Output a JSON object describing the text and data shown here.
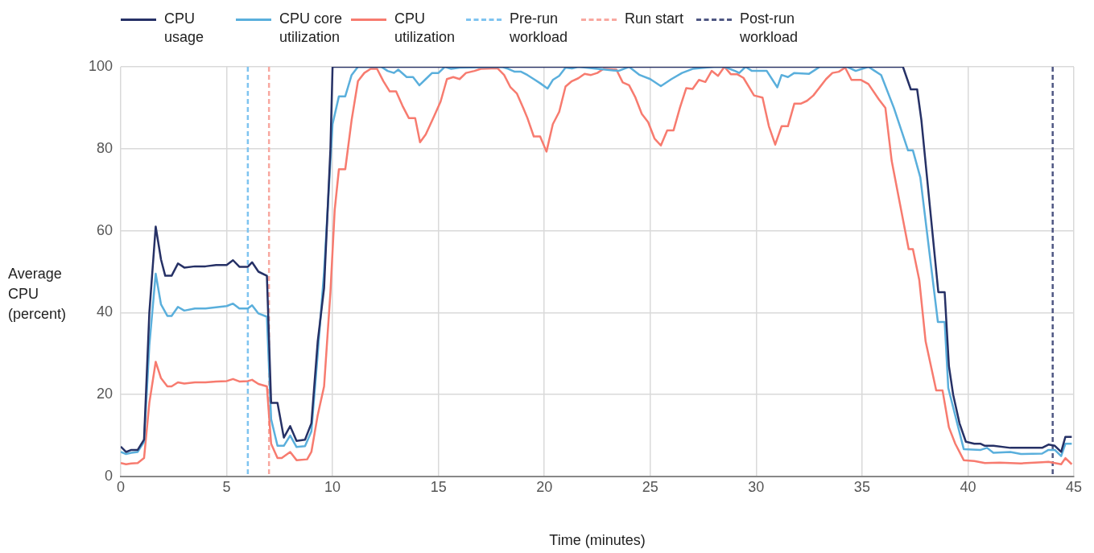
{
  "chart_data": {
    "type": "line",
    "xlabel": "Time (minutes)",
    "ylabel": "Average CPU (percent)",
    "xlim": [
      0,
      45
    ],
    "xticks": [
      0,
      5,
      10,
      15,
      20,
      25,
      30,
      35,
      40,
      45
    ],
    "ylim": [
      0,
      100
    ],
    "yticks": [
      0,
      20,
      40,
      60,
      80,
      100
    ],
    "grid": true,
    "legend": "top",
    "marker": "none",
    "line_style": "solid",
    "series": [
      {
        "name": "CPU usage",
        "color": "#263166",
        "x": [
          0,
          0.25,
          0.5,
          0.8,
          1.1,
          1.35,
          1.65,
          1.9,
          2.1,
          2.4,
          2.7,
          3,
          3.5,
          4,
          4.5,
          5,
          5.3,
          5.6,
          6,
          6.2,
          6.5,
          6.9,
          7.1,
          7.4,
          7.7,
          8,
          8.3,
          8.7,
          9,
          9.3,
          9.6,
          9.9,
          10,
          12,
          15,
          20,
          25,
          30,
          35,
          36.93,
          37.3,
          37.6,
          37.8,
          38.2,
          38.6,
          38.9,
          39.1,
          39.3,
          39.6,
          39.9,
          40.3,
          40.6,
          40.8,
          41.2,
          42,
          42.5,
          43.5,
          43.8,
          44.1,
          44.4,
          44.6,
          44.9
        ],
        "values": [
          7.3,
          6,
          6.5,
          6.5,
          9,
          40,
          61,
          53,
          49,
          49,
          52,
          51,
          51.3,
          51.3,
          51.6,
          51.6,
          52.8,
          51.2,
          51.2,
          52.3,
          50,
          49,
          18,
          18,
          9.5,
          12.3,
          8.7,
          9,
          13,
          33,
          46,
          80,
          100,
          100,
          100,
          100,
          100,
          100,
          100,
          100,
          94.5,
          94.5,
          87,
          66,
          45,
          45,
          27,
          20,
          13,
          8.5,
          8,
          8,
          7.5,
          7.5,
          7,
          7,
          7,
          7.8,
          7.5,
          6,
          9.7,
          9.7
        ]
      },
      {
        "name": "CPU core utilization",
        "color": "#5aafdc",
        "x": [
          0,
          0.25,
          0.5,
          0.8,
          1.1,
          1.35,
          1.65,
          1.9,
          2.2,
          2.4,
          2.7,
          3,
          3.5,
          4,
          4.5,
          5,
          5.3,
          5.6,
          6,
          6.2,
          6.5,
          6.9,
          7.1,
          7.4,
          7.7,
          8,
          8.3,
          8.7,
          9,
          9.3,
          9.6,
          10,
          10.3,
          10.6,
          10.9,
          11.2,
          12.3,
          12.6,
          12.9,
          13.1,
          13.5,
          13.8,
          14.1,
          14.4,
          14.7,
          15,
          15.3,
          15.6,
          16,
          18,
          18.3,
          18.6,
          18.9,
          19.2,
          19.5,
          19.8,
          20.15,
          20.4,
          20.7,
          21,
          21.3,
          21.6,
          23.5,
          24,
          24.5,
          25,
          25.5,
          26,
          26.5,
          27,
          28,
          28.5,
          29,
          29.2,
          29.5,
          29.8,
          30.5,
          31,
          31.2,
          31.5,
          31.8,
          32.5,
          33,
          34,
          34.3,
          34.7,
          35,
          35.3,
          35.6,
          35.9,
          36.5,
          37.17,
          37.4,
          37.75,
          38.58,
          38.9,
          39.07,
          39.8,
          40.6,
          40.9,
          41.2,
          42,
          42.5,
          43.5,
          43.8,
          44.1,
          44.4,
          44.6,
          44.9
        ],
        "values": [
          6,
          5.5,
          5.8,
          6,
          8.5,
          32,
          49.5,
          42,
          39.2,
          39.2,
          41.4,
          40.5,
          41,
          41,
          41.3,
          41.6,
          42.2,
          41,
          41,
          41.8,
          39.8,
          39,
          14,
          7.5,
          7.5,
          10,
          7.2,
          7.4,
          11,
          30,
          50,
          86,
          92.8,
          92.8,
          98,
          100,
          100,
          99,
          98.5,
          99.3,
          97.5,
          97.5,
          95.5,
          97,
          98.5,
          98.5,
          100,
          99.5,
          99.8,
          100,
          99.5,
          98.8,
          98.8,
          98,
          97,
          96,
          94.7,
          96.8,
          97.8,
          99.8,
          99.6,
          100,
          99,
          100,
          98,
          97,
          95.3,
          97,
          98.5,
          99.5,
          100,
          100,
          99,
          98.5,
          100,
          99,
          99,
          95,
          98,
          97.5,
          98.5,
          98.3,
          100,
          100,
          100,
          99,
          99.5,
          100,
          99,
          98,
          90,
          79.6,
          79.6,
          73,
          37.7,
          37.7,
          21.6,
          6.7,
          6.5,
          7,
          5.8,
          6,
          5.5,
          5.6,
          6.5,
          6.5,
          5,
          8,
          8
        ]
      },
      {
        "name": "CPU utilization",
        "color": "#f77b6f",
        "x": [
          0,
          0.25,
          0.5,
          0.8,
          1.1,
          1.35,
          1.65,
          1.9,
          2.2,
          2.4,
          2.7,
          3,
          3.5,
          4,
          4.5,
          5,
          5.3,
          5.6,
          6,
          6.2,
          6.5,
          6.9,
          7.1,
          7.4,
          7.6,
          8,
          8.3,
          8.8,
          9,
          9.3,
          9.6,
          9.9,
          10.1,
          10.3,
          10.6,
          10.9,
          11.2,
          11.5,
          11.8,
          12.1,
          12.4,
          12.7,
          13,
          13.3,
          13.6,
          13.9,
          14.13,
          14.4,
          14.8,
          15.1,
          15.4,
          15.7,
          16,
          16.3,
          16.7,
          17,
          17.5,
          17.8,
          18.1,
          18.4,
          18.7,
          19,
          19.2,
          19.5,
          19.8,
          20.1,
          20.4,
          20.7,
          21,
          21.3,
          21.6,
          21.9,
          22.2,
          22.5,
          22.8,
          23.4,
          23.7,
          24,
          24.3,
          24.6,
          24.9,
          25.2,
          25.5,
          25.8,
          26.1,
          26.4,
          26.7,
          27,
          27.3,
          27.6,
          27.9,
          28.2,
          28.5,
          28.8,
          29.1,
          29.4,
          29.9,
          30.3,
          30.6,
          30.9,
          31.2,
          31.5,
          31.8,
          32.1,
          32.4,
          32.7,
          33.3,
          33.6,
          33.9,
          34.2,
          34.5,
          34.95,
          35.3,
          35.8,
          36.1,
          36.4,
          37.2,
          37.4,
          37.7,
          38,
          38.5,
          38.8,
          39.1,
          39.4,
          39.8,
          40.3,
          40.8,
          41.5,
          42.5,
          43.5,
          43.8,
          44.4,
          44.6,
          44.9
        ],
        "values": [
          3.3,
          3,
          3.2,
          3.3,
          4.5,
          18,
          28,
          24,
          22,
          22,
          23,
          22.7,
          23,
          23,
          23.2,
          23.3,
          23.8,
          23.2,
          23.3,
          23.6,
          22.6,
          22,
          8,
          4.5,
          4.5,
          6,
          4,
          4.2,
          6,
          15,
          22,
          45,
          65,
          75,
          75,
          87,
          96.5,
          98.5,
          99.5,
          99.5,
          96.5,
          94,
          94,
          90.5,
          87.5,
          87.5,
          81.6,
          83.5,
          88,
          91.5,
          97,
          97.5,
          97,
          98.5,
          99,
          99.5,
          99.6,
          99.6,
          98,
          95,
          93.5,
          90,
          87.5,
          83,
          83,
          79.3,
          86,
          89,
          95.2,
          96.5,
          97.2,
          98.3,
          98,
          98.5,
          99.5,
          99.3,
          96.2,
          95.5,
          92.5,
          88.5,
          86.5,
          82.5,
          80.8,
          84.5,
          84.5,
          90,
          94.8,
          94.6,
          96.8,
          96.3,
          99,
          97.8,
          100,
          98.2,
          98.2,
          97.3,
          93,
          92.5,
          85.5,
          81,
          85.5,
          85.5,
          91,
          91,
          91.7,
          93,
          97,
          98.5,
          98.8,
          99.8,
          96.8,
          96.8,
          95.8,
          92,
          90,
          77,
          55.5,
          55.5,
          48,
          33,
          21,
          21,
          12,
          8,
          4,
          3.8,
          3.3,
          3.4,
          3.2,
          3.5,
          3.6,
          3,
          4.5,
          3
        ]
      }
    ],
    "ref_lines": [
      {
        "axis": "x",
        "value": 6,
        "label": "Pre-run workload",
        "color": "#7fc4f0",
        "line_style": "dashed"
      },
      {
        "axis": "x",
        "value": 7,
        "label": "Run start",
        "color": "#f8a8a0",
        "line_style": "dashed"
      },
      {
        "axis": "x",
        "value": 44,
        "label": "Post-run workload",
        "color": "#4f5783",
        "line_style": "dashed"
      }
    ]
  }
}
